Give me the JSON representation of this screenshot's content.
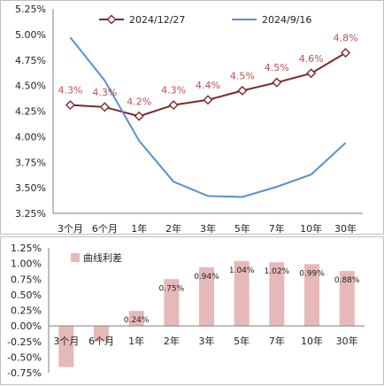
{
  "chart_data": [
    {
      "type": "line",
      "categories": [
        "3个月",
        "6个月",
        "1年",
        "2年",
        "3年",
        "5年",
        "7年",
        "10年",
        "30年"
      ],
      "y_tick_labels": [
        "3.25%",
        "3.50%",
        "3.75%",
        "4.00%",
        "4.25%",
        "4.50%",
        "4.75%",
        "5.00%",
        "5.25%"
      ],
      "ylim": [
        3.25,
        5.25
      ],
      "legend_placement": "top",
      "series": [
        {
          "name": "2024/12/27",
          "color": "#7b2a2a",
          "marker": "diamond",
          "values": [
            4.31,
            4.29,
            4.2,
            4.31,
            4.36,
            4.45,
            4.53,
            4.62,
            4.82
          ],
          "data_labels": [
            "4.3%",
            "4.3%",
            "4.2%",
            "4.3%",
            "4.4%",
            "4.5%",
            "4.5%",
            "4.6%",
            "4.8%"
          ]
        },
        {
          "name": "2024/9/16",
          "color": "#5b8fd0",
          "marker": "none",
          "values": [
            4.97,
            4.55,
            3.96,
            3.56,
            3.42,
            3.41,
            3.51,
            3.63,
            3.94
          ]
        }
      ],
      "data_label_color": "#c0504d"
    },
    {
      "type": "bar",
      "categories": [
        "3个月",
        "6个月",
        "1年",
        "2年",
        "3年",
        "5年",
        "7年",
        "10年",
        "30年"
      ],
      "y_tick_labels": [
        "-0.75%",
        "-0.50%",
        "-0.25%",
        "0.00%",
        "0.25%",
        "0.50%",
        "0.75%",
        "1.00%",
        "1.25%"
      ],
      "ylim": [
        -0.75,
        1.25
      ],
      "legend_placement": "top-left",
      "series": [
        {
          "name": "曲线利差",
          "color": "#e6b9b8",
          "values": [
            -0.66,
            -0.25,
            0.24,
            0.75,
            0.94,
            1.04,
            1.02,
            0.99,
            0.88
          ],
          "data_labels": [
            "",
            "",
            "0.24%",
            "0.75%",
            "0.94%",
            "1.04%",
            "1.02%",
            "0.99%",
            "0.88%"
          ]
        }
      ]
    }
  ]
}
